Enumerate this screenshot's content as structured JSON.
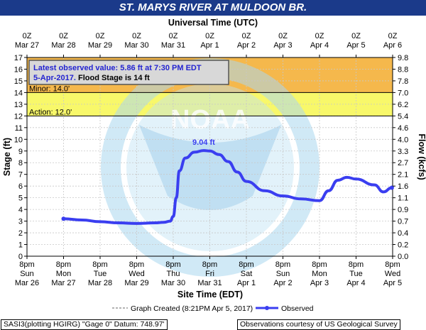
{
  "chart_data": {
    "type": "line",
    "title": "ST. MARYS RIVER AT MULDOON BR.",
    "top_axis_title": "Universal Time (UTC)",
    "bottom_axis_title": "Site Time (EDT)",
    "ylabel_left": "Stage (ft)",
    "ylabel_right": "Flow (kcfs)",
    "ylim": [
      0,
      17
    ],
    "yticks_left": [
      "0",
      "1",
      "2",
      "3",
      "4",
      "5",
      "6",
      "7",
      "8",
      "9",
      "10",
      "11",
      "12",
      "13",
      "14",
      "15",
      "16",
      "17"
    ],
    "yticks_right": [
      "0.0",
      "0.2",
      "0.4",
      "0.7",
      "0.9",
      "1.1",
      "1.6",
      "2.1",
      "2.7",
      "3.3",
      "4.0",
      "4.6",
      "5.4",
      "6.2",
      "7.0",
      "7.8",
      "8.8",
      "9.8"
    ],
    "utc_ticks": [
      {
        "time": "0Z",
        "date": "Mar 27"
      },
      {
        "time": "0Z",
        "date": "Mar 28"
      },
      {
        "time": "0Z",
        "date": "Mar 29"
      },
      {
        "time": "0Z",
        "date": "Mar 30"
      },
      {
        "time": "0Z",
        "date": "Mar 31"
      },
      {
        "time": "0Z",
        "date": "Apr 1"
      },
      {
        "time": "0Z",
        "date": "Apr 2"
      },
      {
        "time": "0Z",
        "date": "Apr 3"
      },
      {
        "time": "0Z",
        "date": "Apr 4"
      },
      {
        "time": "0Z",
        "date": "Apr 5"
      },
      {
        "time": "0Z",
        "date": "Apr 6"
      }
    ],
    "site_ticks": [
      {
        "time": "8pm",
        "day": "Sun",
        "date": "Mar 26"
      },
      {
        "time": "8pm",
        "day": "Mon",
        "date": "Mar 27"
      },
      {
        "time": "8pm",
        "day": "Tue",
        "date": "Mar 28"
      },
      {
        "time": "8pm",
        "day": "Wed",
        "date": "Mar 29"
      },
      {
        "time": "8pm",
        "day": "Thu",
        "date": "Mar 30"
      },
      {
        "time": "8pm",
        "day": "Fri",
        "date": "Mar 31"
      },
      {
        "time": "8pm",
        "day": "Sat",
        "date": "Apr 1"
      },
      {
        "time": "8pm",
        "day": "Sun",
        "date": "Apr 2"
      },
      {
        "time": "8pm",
        "day": "Mon",
        "date": "Apr 3"
      },
      {
        "time": "8pm",
        "day": "Tue",
        "date": "Apr 4"
      },
      {
        "time": "8pm",
        "day": "Wed",
        "date": "Apr 5"
      }
    ],
    "thresholds": [
      {
        "label": "Minor: 14.0'",
        "value": 14.0,
        "color": "#ffff00"
      },
      {
        "label": "Action: 12.0'",
        "value": 12.0,
        "color": "#ffff00"
      }
    ],
    "bands": [
      {
        "from": 14,
        "to": 17,
        "color": "#f5b84c"
      },
      {
        "from": 12,
        "to": 14,
        "color": "#f8f86a"
      }
    ],
    "series": [
      {
        "name": "Observed",
        "color": "#3a3ef0",
        "x": [
          "Mar 27 20:00",
          "Mar 28 08:00",
          "Mar 28 20:00",
          "Mar 29 08:00",
          "Mar 29 20:00",
          "Mar 30 08:00",
          "Mar 30 14:00",
          "Mar 30 18:00",
          "Mar 30 20:00",
          "Mar 30 22:00",
          "Mar 31 00:00",
          "Mar 31 04:00",
          "Mar 31 10:00",
          "Mar 31 16:00",
          "Mar 31 20:00",
          "Apr 1 02:00",
          "Apr 1 08:00",
          "Apr 1 14:00",
          "Apr 1 20:00",
          "Apr 2 08:00",
          "Apr 2 20:00",
          "Apr 3 08:00",
          "Apr 3 20:00",
          "Apr 4 02:00",
          "Apr 4 08:00",
          "Apr 4 14:00",
          "Apr 4 20:00",
          "Apr 5 08:00",
          "Apr 5 14:00",
          "Apr 5 19:30"
        ],
        "y": [
          3.2,
          3.1,
          2.95,
          2.85,
          2.8,
          2.85,
          2.9,
          3.0,
          3.4,
          5.0,
          7.3,
          8.4,
          8.9,
          9.04,
          9.0,
          8.7,
          8.1,
          7.2,
          6.4,
          5.6,
          5.15,
          4.9,
          4.75,
          5.6,
          6.5,
          6.75,
          6.6,
          6.1,
          5.5,
          5.86
        ]
      }
    ],
    "peak_label": "9.04 ft",
    "latest": {
      "line1": "Latest observed value: 5.86 ft at 7:30 PM EDT",
      "line2_bold": "5-Apr-2017.",
      "line2_rest": "Flood Stage is 14 ft"
    },
    "legend": {
      "graph_created": "Graph Created (8:21PM Apr 5, 2017)",
      "observed": "Observed"
    },
    "watermark": "NOAA"
  },
  "footer": {
    "left": "SASI3(plotting HGIRG) \"Gage 0\" Datum: 748.97'",
    "right": "Observations courtesy of US Geological Survey"
  },
  "colors": {
    "title_bar": "#1b3a8a",
    "plot_bg": "#ffffff",
    "series": "#3a3ef0"
  }
}
